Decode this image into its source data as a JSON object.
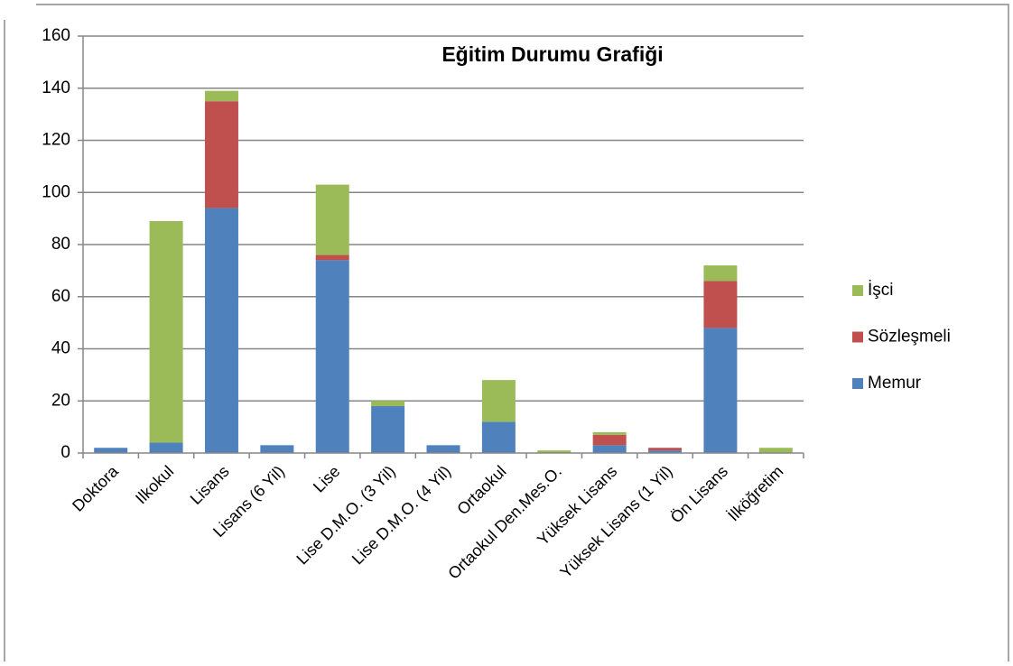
{
  "chart_data": {
    "type": "stacked_bar",
    "title": "Eğitim Durumu Grafiği",
    "categories": [
      "Doktora",
      "Ilkokul",
      "Lisans",
      "Lisans (6 Yil)",
      "Lise",
      "Lise D.M.O. (3 Yil)",
      "Lise D.M.O. (4 Yil)",
      "Ortaokul",
      "Ortaokul Den.Mes.O.",
      "Yüksek Lisans",
      "Yüksek Lisans (1 Yil)",
      "Ön Lisans",
      "İlköğretim"
    ],
    "series": [
      {
        "name": "Memur",
        "color": "#4f81bd",
        "values": [
          2,
          4,
          94,
          3,
          74,
          18,
          3,
          12,
          0,
          3,
          1,
          48,
          0
        ]
      },
      {
        "name": "Sözleşmeli",
        "color": "#c0504d",
        "values": [
          0,
          0,
          41,
          0,
          2,
          0,
          0,
          0,
          0,
          4,
          1,
          18,
          0
        ]
      },
      {
        "name": "İşci",
        "color": "#9bbb59",
        "values": [
          0,
          85,
          4,
          0,
          27,
          2,
          0,
          16,
          1,
          1,
          0,
          6,
          2
        ]
      }
    ],
    "ylim": [
      0,
      160
    ],
    "yticks": [
      0,
      20,
      40,
      60,
      80,
      100,
      120,
      140,
      160
    ],
    "grid": true,
    "legend": "right"
  }
}
